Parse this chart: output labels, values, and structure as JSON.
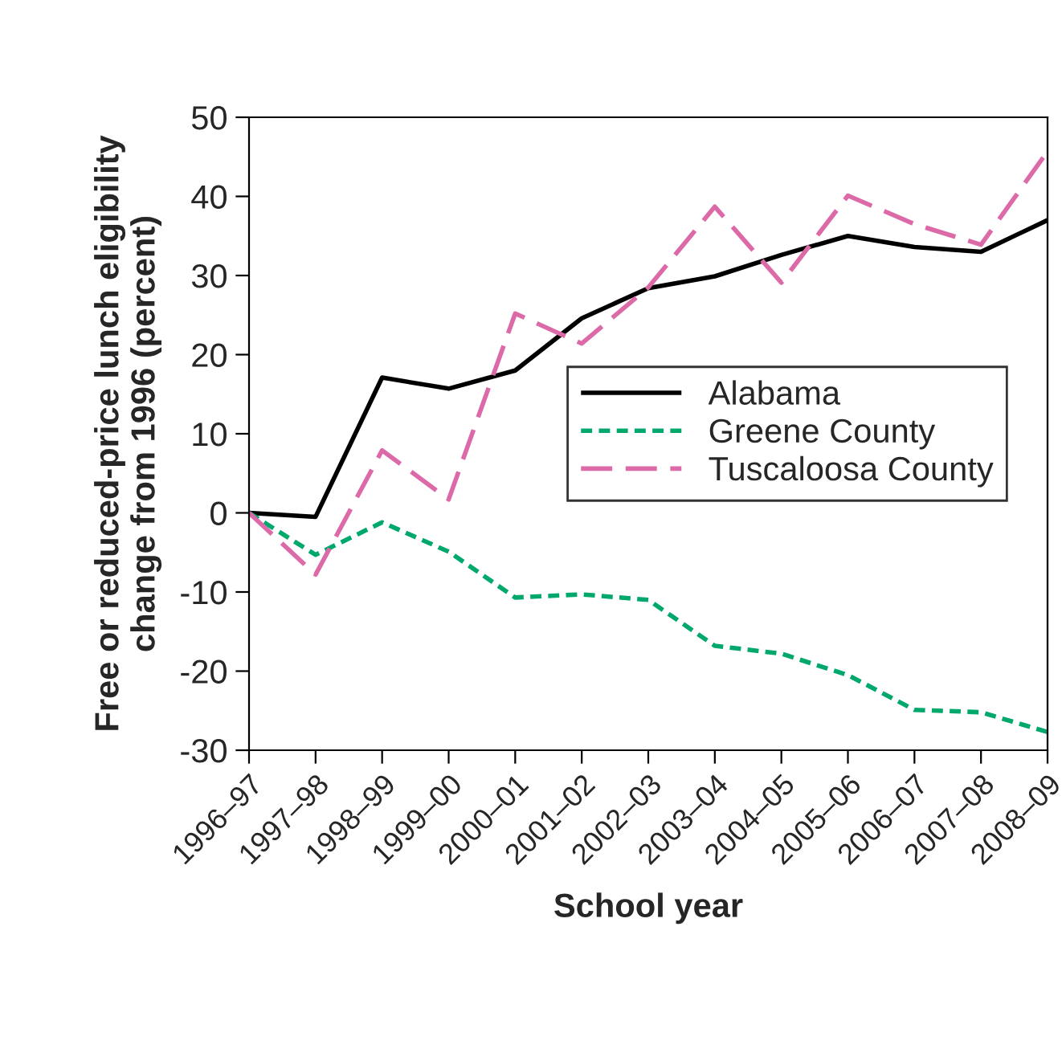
{
  "chart_data": {
    "type": "line",
    "xlabel": "School year",
    "ylabel": "Free or reduced-price lunch eligibility\nchange from 1996 (percent)",
    "categories": [
      "1996–97",
      "1997–98",
      "1998–99",
      "1999–00",
      "2000–01",
      "2001–02",
      "2002–03",
      "2003–04",
      "2004–05",
      "2005–06",
      "2006–07",
      "2007–08",
      "2008–09"
    ],
    "series": [
      {
        "name": "Alabama",
        "color": "#000000",
        "line_style": "solid",
        "values": [
          0,
          -0.5,
          17.1,
          15.7,
          18.0,
          24.6,
          28.4,
          29.9,
          32.6,
          35.0,
          33.6,
          33.0,
          37.0
        ]
      },
      {
        "name": "Greene County",
        "color": "#00a86b",
        "line_style": "dotted",
        "values": [
          0,
          -5.3,
          -1.2,
          -4.9,
          -10.7,
          -10.3,
          -11.0,
          -16.8,
          -17.8,
          -20.5,
          -24.9,
          -25.2,
          -27.7
        ]
      },
      {
        "name": "Tuscaloosa County",
        "color": "#dd6aa8",
        "line_style": "dashed",
        "values": [
          0,
          -7.8,
          7.9,
          1.7,
          25.2,
          21.4,
          28.5,
          38.7,
          29.1,
          40.1,
          36.5,
          33.9,
          45.7
        ]
      }
    ],
    "ylim": [
      -30,
      50
    ],
    "yticks": [
      -30,
      -20,
      -10,
      0,
      10,
      20,
      30,
      40,
      50
    ],
    "grid": false,
    "legend": "center right",
    "marker": "none"
  }
}
